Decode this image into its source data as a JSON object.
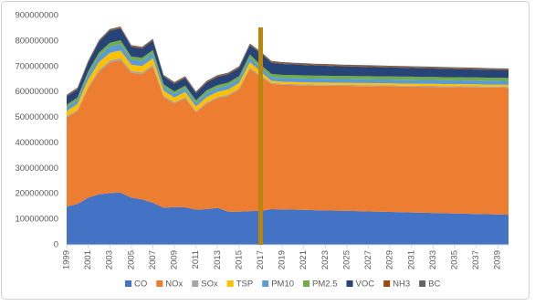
{
  "chart_data": {
    "type": "stacked-area",
    "x": [
      1999,
      2000,
      2001,
      2002,
      2003,
      2004,
      2005,
      2006,
      2007,
      2008,
      2009,
      2010,
      2011,
      2012,
      2013,
      2014,
      2015,
      2016,
      2017,
      2018,
      2019,
      2020,
      2021,
      2022,
      2023,
      2024,
      2025,
      2026,
      2027,
      2028,
      2029,
      2030,
      2031,
      2032,
      2033,
      2034,
      2035,
      2036,
      2037,
      2038,
      2039,
      2040
    ],
    "xlim": [
      1999,
      2040
    ],
    "xticks": [
      1999,
      2001,
      2003,
      2005,
      2007,
      2009,
      2011,
      2013,
      2015,
      2017,
      2019,
      2021,
      2023,
      2025,
      2027,
      2029,
      2031,
      2033,
      2035,
      2037,
      2039
    ],
    "ylim": [
      0,
      900000000
    ],
    "yticks": [
      0,
      100000000,
      200000000,
      300000000,
      400000000,
      500000000,
      600000000,
      700000000,
      800000000,
      900000000
    ],
    "series": [
      {
        "name": "CO",
        "color": "#4472c4",
        "values": [
          150000000,
          160000000,
          185000000,
          198000000,
          203000000,
          205000000,
          185000000,
          178000000,
          165000000,
          145000000,
          148000000,
          147000000,
          138000000,
          140000000,
          145000000,
          130000000,
          130000000,
          132000000,
          133000000,
          140000000,
          139000000,
          138000000,
          137000000,
          136000000,
          135000000,
          134000000,
          133000000,
          132000000,
          131000000,
          130000000,
          129000000,
          128000000,
          127000000,
          126000000,
          125000000,
          124000000,
          123000000,
          122000000,
          121000000,
          120000000,
          119000000,
          118000000
        ]
      },
      {
        "name": "NOx",
        "color": "#ed7d31",
        "values": [
          350000000,
          365000000,
          430000000,
          482000000,
          512000000,
          520000000,
          490000000,
          492000000,
          535000000,
          435000000,
          407000000,
          428000000,
          382000000,
          415000000,
          430000000,
          455000000,
          480000000,
          558000000,
          527000000,
          492000000,
          489000000,
          489000000,
          489000000,
          489000000,
          490000000,
          490000000,
          491000000,
          491000000,
          492000000,
          492000000,
          493000000,
          493000000,
          494000000,
          494000000,
          495000000,
          495000000,
          496000000,
          496000000,
          497000000,
          497000000,
          498000000,
          498000000
        ]
      },
      {
        "name": "SOx",
        "color": "#a5a5a5",
        "values": [
          5000000,
          5000000,
          6000000,
          7000000,
          8000000,
          8000000,
          7000000,
          7000000,
          7000000,
          5000000,
          5000000,
          5000000,
          5000000,
          5000000,
          5000000,
          5000000,
          5000000,
          5000000,
          5000000,
          4000000,
          4000000,
          4000000,
          4000000,
          4000000,
          4000000,
          4000000,
          4000000,
          4000000,
          4000000,
          4000000,
          4000000,
          4000000,
          4000000,
          4000000,
          4000000,
          4000000,
          4000000,
          4000000,
          4000000,
          4000000,
          4000000,
          4000000
        ]
      },
      {
        "name": "TSP",
        "color": "#ffc000",
        "values": [
          20000000,
          22000000,
          28000000,
          30000000,
          30000000,
          30000000,
          25000000,
          25000000,
          25000000,
          20000000,
          18000000,
          20000000,
          18000000,
          20000000,
          20000000,
          20000000,
          20000000,
          22000000,
          15000000,
          8000000,
          8000000,
          8000000,
          8000000,
          8000000,
          8000000,
          8000000,
          8000000,
          8000000,
          8000000,
          8000000,
          8000000,
          8000000,
          8000000,
          8000000,
          8000000,
          8000000,
          8000000,
          8000000,
          8000000,
          8000000,
          8000000,
          8000000
        ]
      },
      {
        "name": "PM10",
        "color": "#5b9bd5",
        "values": [
          15000000,
          16000000,
          20000000,
          24000000,
          25000000,
          25000000,
          20000000,
          20000000,
          20000000,
          15000000,
          14000000,
          15000000,
          14000000,
          16000000,
          16000000,
          16000000,
          16000000,
          18000000,
          15000000,
          15000000,
          15000000,
          15000000,
          15000000,
          15000000,
          15000000,
          15000000,
          15000000,
          15000000,
          15000000,
          15000000,
          15000000,
          15000000,
          15000000,
          15000000,
          15000000,
          15000000,
          15000000,
          15000000,
          15000000,
          15000000,
          15000000,
          15000000
        ]
      },
      {
        "name": "PM2.5",
        "color": "#70ad47",
        "values": [
          10000000,
          10000000,
          12000000,
          14000000,
          15000000,
          15000000,
          12000000,
          12000000,
          12000000,
          10000000,
          10000000,
          10000000,
          10000000,
          11000000,
          11000000,
          11000000,
          11000000,
          12000000,
          12000000,
          12000000,
          12000000,
          12000000,
          12000000,
          12000000,
          12000000,
          12000000,
          12000000,
          12000000,
          12000000,
          12000000,
          12000000,
          12000000,
          12000000,
          12000000,
          12000000,
          12000000,
          12000000,
          12000000,
          12000000,
          12000000,
          12000000,
          12000000
        ]
      },
      {
        "name": "VOC",
        "color": "#264478",
        "values": [
          32000000,
          32000000,
          35000000,
          42000000,
          47000000,
          47000000,
          38000000,
          36000000,
          38000000,
          30000000,
          30000000,
          30000000,
          28000000,
          30000000,
          32000000,
          32000000,
          32000000,
          36000000,
          45000000,
          44000000,
          43000000,
          42000000,
          41000000,
          40000000,
          39000000,
          38000000,
          37000000,
          37000000,
          36000000,
          36000000,
          35000000,
          35000000,
          34000000,
          34000000,
          33000000,
          33000000,
          32000000,
          32000000,
          31000000,
          31000000,
          30000000,
          30000000
        ]
      },
      {
        "name": "NH3",
        "color": "#9e480e",
        "values": [
          3000000,
          3000000,
          3000000,
          3000000,
          3000000,
          3000000,
          3000000,
          3000000,
          3000000,
          3000000,
          3000000,
          3000000,
          3000000,
          3000000,
          3000000,
          3000000,
          3000000,
          3000000,
          3000000,
          3000000,
          3000000,
          3000000,
          3000000,
          3000000,
          3000000,
          3000000,
          3000000,
          3000000,
          3000000,
          3000000,
          3000000,
          3000000,
          3000000,
          3000000,
          3000000,
          3000000,
          3000000,
          3000000,
          3000000,
          3000000,
          3000000,
          3000000
        ]
      },
      {
        "name": "BC",
        "color": "#636363",
        "values": [
          4000000,
          4000000,
          4000000,
          4000000,
          4000000,
          4000000,
          4000000,
          4000000,
          4000000,
          4000000,
          4000000,
          4000000,
          4000000,
          4000000,
          4000000,
          4000000,
          4000000,
          4000000,
          4000000,
          4000000,
          4000000,
          4000000,
          4000000,
          4000000,
          4000000,
          4000000,
          4000000,
          4000000,
          4000000,
          4000000,
          4000000,
          4000000,
          4000000,
          4000000,
          4000000,
          4000000,
          4000000,
          4000000,
          4000000,
          4000000,
          4000000,
          4000000
        ]
      }
    ],
    "vline": {
      "x": 2017,
      "color": "#b8860b"
    }
  }
}
